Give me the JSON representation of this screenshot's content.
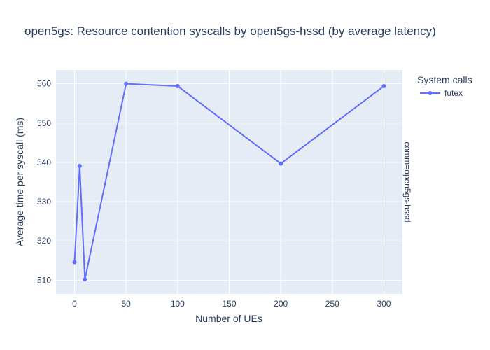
{
  "chart_data": {
    "type": "line",
    "title": "open5gs: Resource contention syscalls by open5gs-hssd (by average latency)",
    "xlabel": "Number of UEs",
    "ylabel": "Average time per syscall (ms)",
    "facet_label": "comm=open5gs-hssd",
    "legend_title": "System calls",
    "legend_position": "top-right",
    "grid": true,
    "xlim": [
      -18,
      318
    ],
    "ylim": [
      506.5,
      563.5
    ],
    "x_ticks": [
      0,
      50,
      100,
      150,
      200,
      250,
      300
    ],
    "y_ticks": [
      510,
      520,
      530,
      540,
      550,
      560
    ],
    "series": [
      {
        "name": "futex",
        "color": "#636efa",
        "x": [
          0,
          5,
          10,
          50,
          100,
          200,
          300
        ],
        "y": [
          514.6,
          539.1,
          510.2,
          560.0,
          559.4,
          539.7,
          559.4
        ]
      }
    ]
  },
  "colors": {
    "plot_bg": "#e5ecf6",
    "grid": "#ffffff",
    "text": "#2a3f5f"
  }
}
